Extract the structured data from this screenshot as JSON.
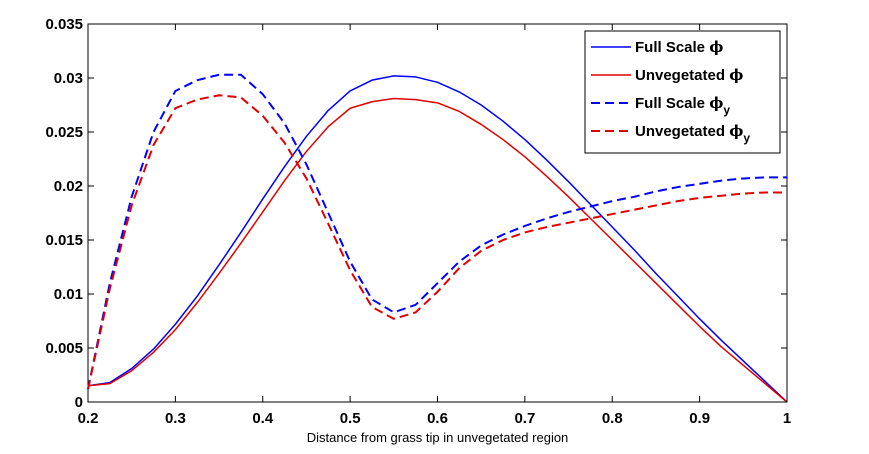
{
  "chart_data": {
    "type": "line",
    "title": "",
    "xlabel": "Distance from grass tip in unvegetated region",
    "ylabel": "",
    "xlim": [
      0.2,
      1.0
    ],
    "ylim": [
      0,
      0.035
    ],
    "xticks": [
      "0.2",
      "0.3",
      "0.4",
      "0.5",
      "0.6",
      "0.7",
      "0.8",
      "0.9",
      "1"
    ],
    "yticks": [
      "0",
      "0.005",
      "0.01",
      "0.015",
      "0.02",
      "0.025",
      "0.03",
      "0.035"
    ],
    "grid": false,
    "legend_position": "top-right",
    "legend": [
      {
        "text": "Full Scale ",
        "symbol": "ϕ",
        "sub": "",
        "color": "#0000ff",
        "dash": "solid"
      },
      {
        "text": "Unvegetated ",
        "symbol": "ϕ",
        "sub": "",
        "color": "#e00000",
        "dash": "solid"
      },
      {
        "text": "Full Scale ",
        "symbol": "ϕ",
        "sub": "y",
        "color": "#0000ff",
        "dash": "dashed"
      },
      {
        "text": "Unvegetated ",
        "symbol": "ϕ",
        "sub": "y",
        "color": "#e00000",
        "dash": "dashed"
      }
    ],
    "x": [
      0.2,
      0.225,
      0.25,
      0.275,
      0.3,
      0.325,
      0.35,
      0.375,
      0.4,
      0.425,
      0.45,
      0.475,
      0.5,
      0.525,
      0.55,
      0.575,
      0.6,
      0.625,
      0.65,
      0.675,
      0.7,
      0.725,
      0.75,
      0.775,
      0.8,
      0.825,
      0.85,
      0.875,
      0.9,
      0.925,
      0.95,
      0.975,
      1.0
    ],
    "series": [
      {
        "color": "#0000ff",
        "dash": "solid",
        "values": [
          0.0015,
          0.0018,
          0.0031,
          0.0049,
          0.0072,
          0.0098,
          0.0127,
          0.0157,
          0.0188,
          0.0218,
          0.0246,
          0.027,
          0.0288,
          0.0298,
          0.0302,
          0.0301,
          0.0296,
          0.0287,
          0.0275,
          0.026,
          0.0243,
          0.0224,
          0.0204,
          0.0183,
          0.0162,
          0.0141,
          0.0119,
          0.0098,
          0.0077,
          0.0057,
          0.0038,
          0.0019,
          0.0
        ]
      },
      {
        "color": "#e00000",
        "dash": "solid",
        "values": [
          0.0015,
          0.0017,
          0.0029,
          0.0046,
          0.0067,
          0.0092,
          0.0119,
          0.0147,
          0.0176,
          0.0205,
          0.0232,
          0.0255,
          0.0272,
          0.0278,
          0.0281,
          0.028,
          0.0277,
          0.0269,
          0.0257,
          0.0243,
          0.0227,
          0.0209,
          0.019,
          0.017,
          0.015,
          0.013,
          0.011,
          0.009,
          0.007,
          0.0051,
          0.0034,
          0.0017,
          0.0
        ]
      },
      {
        "color": "#0000ff",
        "dash": "dashed",
        "values": [
          0.0012,
          0.011,
          0.019,
          0.025,
          0.0288,
          0.0298,
          0.0303,
          0.0303,
          0.0285,
          0.0258,
          0.022,
          0.0175,
          0.013,
          0.0095,
          0.0083,
          0.009,
          0.011,
          0.013,
          0.0145,
          0.0155,
          0.0163,
          0.017,
          0.0176,
          0.0181,
          0.0186,
          0.019,
          0.0195,
          0.0199,
          0.0202,
          0.0205,
          0.0207,
          0.0208,
          0.0208
        ]
      },
      {
        "color": "#e00000",
        "dash": "dashed",
        "values": [
          0.0012,
          0.0105,
          0.0182,
          0.0238,
          0.0272,
          0.028,
          0.0284,
          0.0282,
          0.0265,
          0.024,
          0.0207,
          0.0165,
          0.0122,
          0.0088,
          0.0077,
          0.0083,
          0.0102,
          0.0124,
          0.014,
          0.015,
          0.0157,
          0.0162,
          0.0166,
          0.017,
          0.0174,
          0.0178,
          0.0182,
          0.0186,
          0.0189,
          0.0191,
          0.0193,
          0.0194,
          0.0194
        ]
      }
    ]
  }
}
